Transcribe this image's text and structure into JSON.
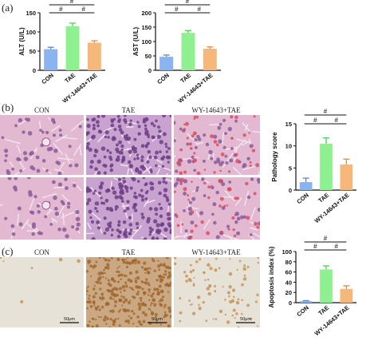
{
  "panels": {
    "a": "(a)",
    "b": "(b)",
    "c": "(c)"
  },
  "sig_mark": "#",
  "micro_b": {
    "con": "CON",
    "tae": "TAE",
    "wy": "WY-14643+TAE"
  },
  "micro_c": {
    "con": "CON",
    "tae": "TAE",
    "wy": "WY-14643+TAE",
    "scale": "50μm"
  },
  "colors": {
    "con": "#8ab4f0",
    "tae": "#8ef08e",
    "wy": "#f6b77a",
    "he_pink": "#d8a8c6",
    "he_purple": "#8a5a9a",
    "ihc_brown": "#b0793a",
    "ihc_bg": "#e8e4dc"
  },
  "chart_data": [
    {
      "type": "bar",
      "ylabel": "ALT (U/L)",
      "categories": [
        "CON",
        "TAE",
        "WY-14643+TAE"
      ],
      "values": [
        55,
        115,
        72
      ],
      "errors": [
        5,
        8,
        5
      ],
      "ylim": [
        0,
        150
      ],
      "yticks": [
        0,
        50,
        100,
        150
      ]
    },
    {
      "type": "bar",
      "ylabel": "AST (U/L)",
      "categories": [
        "CON",
        "TAE",
        "WY-14643+TAE"
      ],
      "values": [
        47,
        130,
        75
      ],
      "errors": [
        6,
        8,
        6
      ],
      "ylim": [
        0,
        200
      ],
      "yticks": [
        0,
        50,
        100,
        150,
        200
      ]
    },
    {
      "type": "bar",
      "ylabel": "Pathology score",
      "categories": [
        "CON",
        "TAE",
        "WY-14643+TAE"
      ],
      "values": [
        1.8,
        10.5,
        5.8
      ],
      "errors": [
        0.9,
        1.3,
        1.2
      ],
      "ylim": [
        0,
        15
      ],
      "yticks": [
        0,
        5,
        10,
        15
      ]
    },
    {
      "type": "bar",
      "ylabel": "Apoptosis index (%)",
      "categories": [
        "CON",
        "TAE",
        "WY-14643+TAE"
      ],
      "values": [
        3,
        65,
        27
      ],
      "errors": [
        1,
        7,
        6
      ],
      "ylim": [
        0,
        100
      ],
      "yticks": [
        0,
        20,
        40,
        60,
        80,
        100
      ]
    }
  ]
}
